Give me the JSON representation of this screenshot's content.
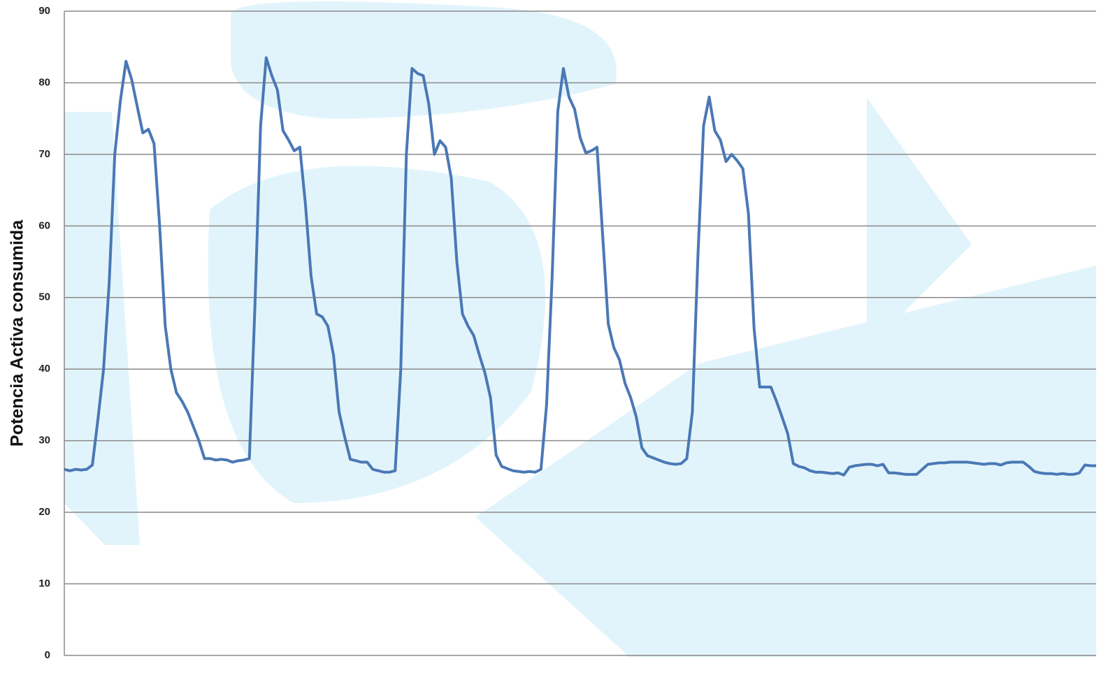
{
  "chart_data": {
    "type": "line",
    "y_label": "Potencia Activa consumida",
    "ylim": [
      0,
      90
    ],
    "yticks": [
      0,
      10,
      20,
      30,
      40,
      50,
      60,
      70,
      80,
      90
    ],
    "grid": true,
    "series": [
      {
        "color": "#4a78b5",
        "values": [
          26,
          25.8,
          26,
          25.9,
          26,
          26.6,
          33,
          40,
          52,
          70,
          77.5,
          83,
          80.5,
          76.7,
          73,
          73.5,
          71.5,
          60,
          46,
          40,
          36.7,
          35.5,
          34,
          32,
          30,
          27.5,
          27.5,
          27.3,
          27.4,
          27.3,
          27,
          27.2,
          27.3,
          27.5,
          49,
          74,
          83.5,
          81,
          79,
          73.3,
          72,
          70.5,
          71,
          63,
          53,
          47.7,
          47.3,
          46,
          42,
          34,
          30.5,
          27.4,
          27.2,
          27,
          27,
          26,
          25.8,
          25.6,
          25.6,
          25.8,
          40,
          70,
          82,
          81.3,
          81,
          77,
          70,
          71.9,
          71,
          66.7,
          55,
          47.7,
          46,
          44.7,
          42,
          39.5,
          36,
          28,
          26.4,
          26.1,
          25.8,
          25.7,
          25.6,
          25.7,
          25.6,
          26,
          35,
          53,
          76,
          82,
          78,
          76.3,
          72.3,
          70.2,
          70.5,
          71,
          58.7,
          46.3,
          43,
          41.3,
          38,
          36,
          33.3,
          29,
          27.9,
          27.6,
          27.3,
          27,
          26.8,
          26.7,
          26.8,
          27.5,
          34,
          56,
          74,
          78,
          73.3,
          72,
          69,
          70,
          69.1,
          68,
          61.7,
          45.7,
          37.5,
          37.5,
          37.5,
          35.5,
          33.3,
          31,
          26.8,
          26.4,
          26.2,
          25.8,
          25.6,
          25.6,
          25.5,
          25.4,
          25.5,
          25.2,
          26.3,
          26.5,
          26.6,
          26.7,
          26.7,
          26.5,
          26.7,
          25.5,
          25.5,
          25.4,
          25.3,
          25.3,
          25.3,
          26,
          26.7,
          26.8,
          26.9,
          26.9,
          27,
          27,
          27,
          27,
          26.9,
          26.8,
          26.7,
          26.8,
          26.8,
          26.6,
          26.9,
          27,
          27,
          27,
          26.4,
          25.7,
          25.5,
          25.4,
          25.4,
          25.3,
          25.4,
          25.3,
          25.3,
          25.5,
          26.6,
          26.5,
          26.5
        ]
      }
    ]
  }
}
